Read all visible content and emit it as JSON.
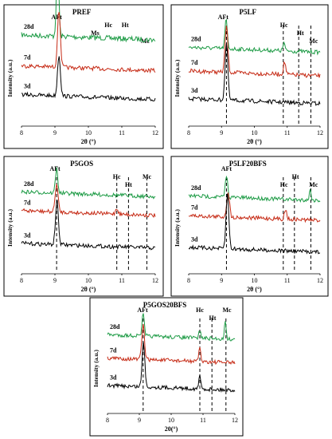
{
  "figure": {
    "panels": [
      {
        "title": "PREF",
        "xlabel": "2θ (°)",
        "ylabel": "Intensity (a.u.)",
        "xlim": [
          8,
          12
        ],
        "xticks": [
          "8",
          "9",
          "10",
          "11",
          "12"
        ],
        "peak_labels": [
          "AFt",
          "Hc",
          "Ht",
          "Ms",
          "Mc"
        ],
        "peak_label_x": [
          9.05,
          10.6,
          11.1,
          10.2,
          11.7
        ],
        "peak_label_row": [
          0,
          1,
          1,
          2,
          3
        ],
        "dashed_x": [],
        "series": [
          {
            "name": "28d",
            "color": "#1d9b45",
            "base": 0.2,
            "peaks": [
              [
                9.08,
                0.78,
                0.05
              ]
            ],
            "noise": 0.05
          },
          {
            "name": "7d",
            "color": "#c62b16",
            "base": 0.5,
            "peaks": [
              [
                9.12,
                0.55,
                0.06
              ]
            ],
            "noise": 0.04
          },
          {
            "name": "3d",
            "color": "#000000",
            "base": 0.78,
            "peaks": [
              [
                9.12,
                0.4,
                0.06
              ]
            ],
            "noise": 0.04
          }
        ]
      },
      {
        "title": "P5LF",
        "xlabel": "2θ (°)",
        "ylabel": "Intensity (a.u.)",
        "xlim": [
          8,
          12
        ],
        "xticks": [
          "8",
          "9",
          "10",
          "11",
          "12"
        ],
        "peak_labels": [
          "AFt",
          "Hc",
          "Ht",
          "Mc"
        ],
        "peak_label_x": [
          9.05,
          10.9,
          11.4,
          11.8
        ],
        "peak_label_row": [
          0,
          1,
          2,
          3
        ],
        "dashed_x": [
          9.15,
          10.88,
          11.35,
          11.72
        ],
        "series": [
          {
            "name": "28d",
            "color": "#1d9b45",
            "base": 0.32,
            "peaks": [
              [
                9.14,
                0.28,
                0.05
              ],
              [
                10.9,
                0.08,
                0.04
              ]
            ],
            "noise": 0.04
          },
          {
            "name": "7d",
            "color": "#c62b16",
            "base": 0.55,
            "peaks": [
              [
                9.15,
                0.45,
                0.06
              ],
              [
                10.92,
                0.12,
                0.05
              ]
            ],
            "noise": 0.04
          },
          {
            "name": "3d",
            "color": "#000000",
            "base": 0.82,
            "peaks": [
              [
                9.15,
                0.55,
                0.06
              ]
            ],
            "noise": 0.04
          }
        ]
      },
      {
        "title": "P5GOS",
        "xlabel": "2θ (°)",
        "ylabel": "Intensity (a.u.)",
        "xlim": [
          8,
          12
        ],
        "xticks": [
          "8",
          "9",
          "10",
          "11",
          "12"
        ],
        "peak_labels": [
          "AFt",
          "Hc",
          "Ht",
          "Mc"
        ],
        "peak_label_x": [
          9.0,
          10.85,
          11.2,
          11.75
        ],
        "peak_label_row": [
          0,
          1,
          2,
          1
        ],
        "dashed_x": [
          9.05,
          10.85,
          11.2,
          11.75
        ],
        "series": [
          {
            "name": "28d",
            "color": "#1d9b45",
            "base": 0.26,
            "peaks": [
              [
                9.05,
                0.25,
                0.05
              ]
            ],
            "noise": 0.04
          },
          {
            "name": "7d",
            "color": "#c62b16",
            "base": 0.45,
            "peaks": [
              [
                9.05,
                0.28,
                0.06
              ],
              [
                10.85,
                0.06,
                0.05
              ]
            ],
            "noise": 0.04
          },
          {
            "name": "3d",
            "color": "#000000",
            "base": 0.78,
            "peaks": [
              [
                9.06,
                0.45,
                0.06
              ]
            ],
            "noise": 0.04
          }
        ]
      },
      {
        "title": "P5LF20BFS",
        "xlabel": "2θ (°)",
        "ylabel": "Intensity (a.u.)",
        "xlim": [
          8,
          12
        ],
        "xticks": [
          "8",
          "9",
          "10",
          "11",
          "12"
        ],
        "peak_labels": [
          "AFt",
          "Hc",
          "Ht",
          "Mc"
        ],
        "peak_label_x": [
          9.15,
          10.9,
          11.25,
          11.8
        ],
        "peak_label_row": [
          0,
          2,
          1,
          2
        ],
        "dashed_x": [
          9.15,
          10.88,
          11.22,
          11.72
        ],
        "series": [
          {
            "name": "28d",
            "color": "#1d9b45",
            "base": 0.3,
            "peaks": [
              [
                9.15,
                0.22,
                0.05
              ],
              [
                11.7,
                0.1,
                0.04
              ]
            ],
            "noise": 0.04
          },
          {
            "name": "7d",
            "color": "#c62b16",
            "base": 0.5,
            "peaks": [
              [
                9.2,
                0.25,
                0.06
              ],
              [
                10.95,
                0.1,
                0.05
              ]
            ],
            "noise": 0.04
          },
          {
            "name": "3d",
            "color": "#000000",
            "base": 0.82,
            "peaks": [
              [
                9.18,
                0.55,
                0.06
              ]
            ],
            "noise": 0.04
          }
        ]
      },
      {
        "title": "P5GOS20BFS",
        "xlabel": "20(°)",
        "ylabel": "Intensity (a.u.)",
        "xlim": [
          8,
          12
        ],
        "xticks": [
          "8",
          "9",
          "10",
          "11",
          "12"
        ],
        "peak_labels": [
          "AFt",
          "Hc",
          "Ht",
          "Mc"
        ],
        "peak_label_x": [
          9.1,
          10.9,
          11.3,
          11.75
        ],
        "peak_label_row": [
          0,
          0,
          1,
          0
        ],
        "dashed_x": [
          9.12,
          10.9,
          11.28,
          11.72
        ],
        "series": [
          {
            "name": "28d",
            "color": "#1d9b45",
            "base": 0.28,
            "peaks": [
              [
                9.12,
                0.22,
                0.05
              ],
              [
                10.9,
                0.08,
                0.04
              ],
              [
                11.7,
                0.18,
                0.04
              ]
            ],
            "noise": 0.04
          },
          {
            "name": "7d",
            "color": "#c62b16",
            "base": 0.52,
            "peaks": [
              [
                9.12,
                0.35,
                0.06
              ],
              [
                10.9,
                0.15,
                0.04
              ]
            ],
            "noise": 0.04
          },
          {
            "name": "3d",
            "color": "#000000",
            "base": 0.8,
            "peaks": [
              [
                9.13,
                0.45,
                0.06
              ],
              [
                10.9,
                0.14,
                0.04
              ]
            ],
            "noise": 0.04
          }
        ]
      }
    ]
  },
  "chart_data": [
    {
      "type": "line",
      "title": "PREF",
      "xlabel": "2θ (°)",
      "ylabel": "Intensity (a.u.)",
      "xlim": [
        8,
        12
      ],
      "series": [
        {
          "name": "28d",
          "peak_x": [
            9.08
          ]
        },
        {
          "name": "7d",
          "peak_x": [
            9.12
          ]
        },
        {
          "name": "3d",
          "peak_x": [
            9.12
          ]
        }
      ],
      "annotations": [
        "AFt",
        "Hc",
        "Ht",
        "Ms",
        "Mc"
      ]
    },
    {
      "type": "line",
      "title": "P5LF",
      "xlabel": "2θ (°)",
      "ylabel": "Intensity (a.u.)",
      "xlim": [
        8,
        12
      ],
      "series": [
        {
          "name": "28d",
          "peak_x": [
            9.14,
            10.9
          ]
        },
        {
          "name": "7d",
          "peak_x": [
            9.15,
            10.92
          ]
        },
        {
          "name": "3d",
          "peak_x": [
            9.15
          ]
        }
      ],
      "annotations": [
        "AFt",
        "Hc",
        "Ht",
        "Mc"
      ]
    },
    {
      "type": "line",
      "title": "P5GOS",
      "xlabel": "2θ (°)",
      "ylabel": "Intensity (a.u.)",
      "xlim": [
        8,
        12
      ],
      "series": [
        {
          "name": "28d",
          "peak_x": [
            9.05
          ]
        },
        {
          "name": "7d",
          "peak_x": [
            9.05,
            10.85
          ]
        },
        {
          "name": "3d",
          "peak_x": [
            9.06
          ]
        }
      ],
      "annotations": [
        "AFt",
        "Hc",
        "Ht",
        "Mc"
      ]
    },
    {
      "type": "line",
      "title": "P5LF20BFS",
      "xlabel": "2θ (°)",
      "ylabel": "Intensity (a.u.)",
      "xlim": [
        8,
        12
      ],
      "series": [
        {
          "name": "28d",
          "peak_x": [
            9.15,
            11.7
          ]
        },
        {
          "name": "7d",
          "peak_x": [
            9.2,
            10.95
          ]
        },
        {
          "name": "3d",
          "peak_x": [
            9.18
          ]
        }
      ],
      "annotations": [
        "AFt",
        "Hc",
        "Ht",
        "Mc"
      ]
    },
    {
      "type": "line",
      "title": "P5GOS20BFS",
      "xlabel": "20(°)",
      "ylabel": "Intensity (a.u.)",
      "xlim": [
        8,
        12
      ],
      "series": [
        {
          "name": "28d",
          "peak_x": [
            9.12,
            10.9,
            11.7
          ]
        },
        {
          "name": "7d",
          "peak_x": [
            9.12,
            10.9
          ]
        },
        {
          "name": "3d",
          "peak_x": [
            9.13,
            10.9
          ]
        }
      ],
      "annotations": [
        "AFt",
        "Hc",
        "Ht",
        "Mc"
      ]
    }
  ]
}
